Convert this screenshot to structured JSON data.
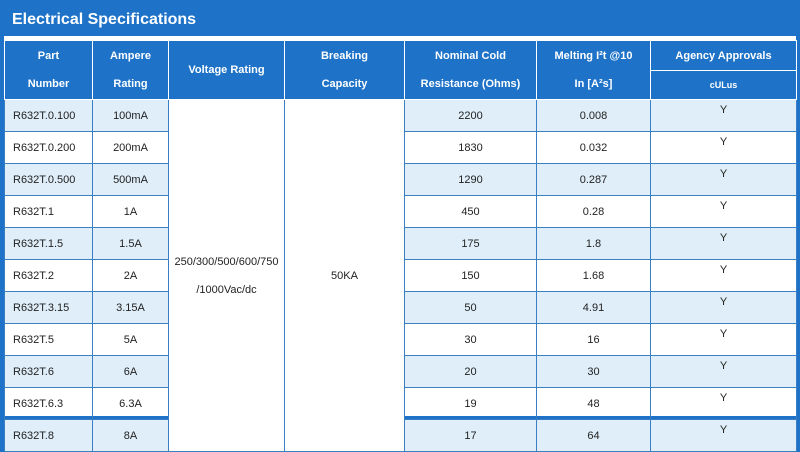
{
  "title": "Electrical Specifications",
  "headers": {
    "part_number": [
      "Part",
      "Number"
    ],
    "ampere_rating": [
      "Ampere",
      "Rating"
    ],
    "voltage_rating": "Voltage Rating",
    "breaking_capacity": [
      "Breaking",
      "Capacity"
    ],
    "nominal_cold": [
      "Nominal Cold",
      "Resistance (Ohms)"
    ],
    "melting": [
      "Melting I²t @10",
      "In [A²s]"
    ],
    "agency": "Agency Approvals",
    "agency_logo": "cULus"
  },
  "voltage_rating": [
    "250/300/500/600/750",
    "/1000Vac/dc"
  ],
  "breaking_capacity": "50KA",
  "rows": [
    {
      "part": "R632T.0.100",
      "ampere": "100mA",
      "resistance": "2200",
      "melting": "0.008",
      "agency": "Y"
    },
    {
      "part": "R632T.0.200",
      "ampere": "200mA",
      "resistance": "1830",
      "melting": "0.032",
      "agency": "Y"
    },
    {
      "part": "R632T.0.500",
      "ampere": "500mA",
      "resistance": "1290",
      "melting": "0.287",
      "agency": "Y"
    },
    {
      "part": "R632T.1",
      "ampere": "1A",
      "resistance": "450",
      "melting": "0.28",
      "agency": "Y"
    },
    {
      "part": "R632T.1.5",
      "ampere": "1.5A",
      "resistance": "175",
      "melting": "1.8",
      "agency": "Y"
    },
    {
      "part": "R632T.2",
      "ampere": "2A",
      "resistance": "150",
      "melting": "1.68",
      "agency": "Y"
    },
    {
      "part": "R632T.3.15",
      "ampere": "3.15A",
      "resistance": "50",
      "melting": "4.91",
      "agency": "Y"
    },
    {
      "part": "R632T.5",
      "ampere": "5A",
      "resistance": "30",
      "melting": "16",
      "agency": "Y"
    },
    {
      "part": "R632T.6",
      "ampere": "6A",
      "resistance": "20",
      "melting": "30",
      "agency": "Y"
    },
    {
      "part": "R632T.6.3",
      "ampere": "6.3A",
      "resistance": "19",
      "melting": "48",
      "agency": "Y"
    },
    {
      "part": "R632T.8",
      "ampere": "8A",
      "resistance": "17",
      "melting": "64",
      "agency": "Y"
    }
  ],
  "colors": {
    "header_bg": "#1e73c8",
    "row_shade": "#dfeef8",
    "border": "#3a7fc4"
  }
}
